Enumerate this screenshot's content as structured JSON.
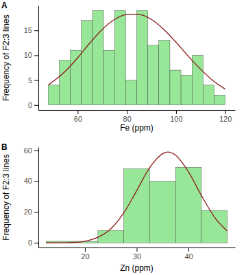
{
  "chart_data": [
    {
      "type": "histogram",
      "title": "A",
      "x_label": "Fe (ppm)",
      "y_label": "Frequency of F2:3 lines",
      "bins": [
        48,
        52.5,
        57,
        61.5,
        66,
        70.5,
        75,
        79.5,
        84,
        88.5,
        93,
        97.5,
        102,
        106.5,
        111,
        115.5,
        120
      ],
      "values": [
        4,
        9,
        11,
        17,
        19,
        11,
        19,
        5,
        19,
        12,
        13,
        7,
        6,
        10,
        4,
        2
      ],
      "color": "#98e698",
      "xlim": [
        44,
        124
      ],
      "xticks": [
        60,
        80,
        100,
        120
      ],
      "ylim": [
        -1,
        20
      ],
      "yticks": [
        0,
        5,
        10,
        15
      ],
      "series": [
        {
          "type": "line",
          "color": "#8b1a1a",
          "x": [
            48,
            55,
            60,
            65,
            70,
            75,
            80,
            85,
            90,
            95,
            100,
            105,
            110,
            115,
            120
          ],
          "values": [
            4,
            6.8,
            9.5,
            12.5,
            15.2,
            17.2,
            18.2,
            18.2,
            17.2,
            15.2,
            12.6,
            9.8,
            7.2,
            4.9,
            3.2
          ]
        }
      ]
    },
    {
      "type": "histogram",
      "title": "B",
      "x_label": "Zn (ppm)",
      "y_label": "Frequency of F2:3 lines",
      "bins": [
        12.5,
        17.5,
        22.5,
        27.5,
        32.5,
        37.5,
        42.5,
        47.5
      ],
      "values": [
        1,
        1,
        8,
        48,
        40,
        49,
        21
      ],
      "color": "#98e698",
      "xlim": [
        11,
        49
      ],
      "xticks": [
        20,
        30,
        40
      ],
      "ylim": [
        -3,
        62
      ],
      "yticks": [
        0,
        20,
        40,
        60
      ],
      "series": [
        {
          "type": "line",
          "color": "#8b1a1a",
          "x": [
            12.5,
            17.5,
            20,
            22.5,
            25,
            27.5,
            30,
            32.5,
            36,
            37.5,
            40,
            42.5,
            45,
            47.5
          ],
          "values": [
            0,
            0.3,
            1.1,
            3.6,
            9.1,
            19.4,
            33.8,
            48.7,
            58.8,
            56.8,
            46,
            30.7,
            16.8,
            7.7
          ]
        }
      ]
    }
  ]
}
